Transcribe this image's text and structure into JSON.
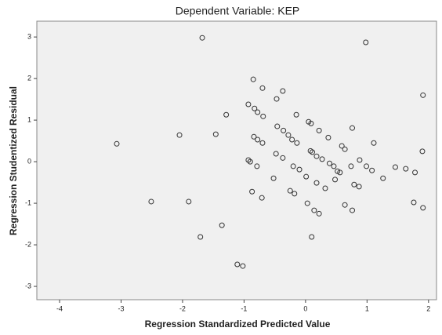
{
  "chart_data": {
    "type": "scatter",
    "title": "Dependent Variable: KEP",
    "x_label": "Regression Standardized Predicted Value",
    "y_label": "Regression Studentized Residual",
    "xlim": [
      -4.37,
      2.13
    ],
    "ylim": [
      -3.32,
      3.38
    ],
    "xticks": [
      -4,
      -3,
      -2,
      -1,
      0,
      1,
      2
    ],
    "yticks": [
      -3,
      -2,
      -1,
      0,
      1,
      2,
      3
    ],
    "color": "#333333",
    "background": "#f0f0f0",
    "x": [
      -1.68,
      0.98,
      -3.07,
      -2.05,
      -2.51,
      -1.9,
      -1.46,
      -1.29,
      -1.36,
      -1.71,
      -1.11,
      -1.02,
      -0.85,
      -0.7,
      -0.93,
      -0.83,
      -0.78,
      -0.69,
      -0.47,
      -0.37,
      -0.15,
      0.05,
      0.09,
      0.22,
      -0.46,
      -0.36,
      -0.28,
      -0.22,
      -0.14,
      -0.84,
      -0.78,
      -0.7,
      -0.93,
      -0.9,
      -0.79,
      -0.48,
      -0.37,
      -0.52,
      -0.2,
      -0.1,
      0.01,
      0.08,
      0.11,
      0.18,
      0.27,
      0.37,
      0.39,
      0.46,
      0.52,
      0.59,
      0.64,
      0.74,
      0.88,
      0.76,
      0.99,
      1.11,
      1.08,
      1.26,
      1.46,
      1.63,
      1.78,
      1.91,
      1.9,
      1.91,
      1.76,
      -0.87,
      -0.71,
      -0.25,
      -0.18,
      0.03,
      0.14,
      0.22,
      0.1,
      0.18,
      0.32,
      0.48,
      0.56,
      0.64,
      0.76,
      0.79,
      0.87
    ],
    "values": [
      2.98,
      2.87,
      0.43,
      0.64,
      -0.96,
      -0.96,
      0.66,
      1.13,
      -1.53,
      -1.81,
      -2.47,
      -2.51,
      1.98,
      1.77,
      1.38,
      1.28,
      1.19,
      1.09,
      1.51,
      1.7,
      1.13,
      0.96,
      0.92,
      0.75,
      0.85,
      0.75,
      0.64,
      0.53,
      0.45,
      0.6,
      0.53,
      0.45,
      0.04,
      0.0,
      -0.11,
      0.19,
      0.09,
      -0.4,
      -0.11,
      -0.19,
      -0.36,
      0.26,
      0.23,
      0.13,
      0.06,
      0.58,
      -0.04,
      -0.11,
      -0.23,
      0.38,
      0.3,
      -0.11,
      0.04,
      0.81,
      -0.11,
      0.45,
      -0.21,
      -0.4,
      -0.13,
      -0.17,
      -0.26,
      1.6,
      0.25,
      -1.11,
      -0.98,
      -0.72,
      -0.87,
      -0.7,
      -0.77,
      -1.0,
      -1.17,
      -1.25,
      -1.81,
      -0.51,
      -0.64,
      -0.43,
      -0.26,
      -1.04,
      -1.17,
      -0.55,
      -0.6
    ]
  }
}
